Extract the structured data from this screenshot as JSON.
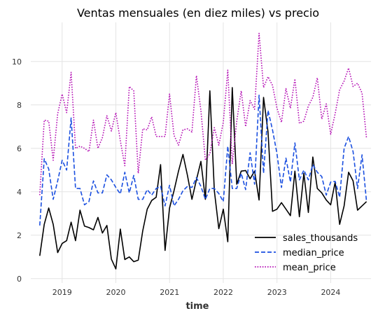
{
  "chart_data": {
    "type": "line",
    "title": "Ventas mensuales (en diez miles) vs precio",
    "xlabel": "time",
    "ylabel": "",
    "x_start": "2018-08",
    "x_ticks": [
      "2019",
      "2020",
      "2021",
      "2022",
      "2023",
      "2024"
    ],
    "y_ticks": [
      0,
      2,
      4,
      6,
      8,
      10
    ],
    "xlim": [
      "2018-06",
      "2024-10"
    ],
    "ylim": [
      -0.2,
      11.8
    ],
    "grid": true,
    "legend_position": "bottom-right",
    "series": [
      {
        "name": "sales_thousands",
        "color": "#000000",
        "dash": "solid",
        "values": [
          1.05,
          2.5,
          3.25,
          2.5,
          1.2,
          1.62,
          1.75,
          2.6,
          1.75,
          3.15,
          2.42,
          2.35,
          2.25,
          2.82,
          2.1,
          2.45,
          0.9,
          0.45,
          2.28,
          0.88,
          1.0,
          0.78,
          0.85,
          2.2,
          3.2,
          3.6,
          3.75,
          5.25,
          1.3,
          3.25,
          4.05,
          4.95,
          5.72,
          4.75,
          3.65,
          4.55,
          5.4,
          3.65,
          8.65,
          4.05,
          2.3,
          3.2,
          1.7,
          8.8,
          4.35,
          4.95,
          4.98,
          4.6,
          4.95,
          3.62,
          8.35,
          6.75,
          3.1,
          3.2,
          3.5,
          3.2,
          2.9,
          4.95,
          2.85,
          4.85,
          3.05,
          5.6,
          4.15,
          3.95,
          3.62,
          3.4,
          4.45,
          2.5,
          3.35,
          4.9,
          4.5,
          3.15,
          3.35,
          3.55
        ]
      },
      {
        "name": "median_price",
        "color": "#1a4fe0",
        "dash": "dashed",
        "values": [
          2.45,
          5.52,
          5.05,
          3.65,
          4.5,
          5.45,
          5.0,
          7.4,
          4.15,
          4.15,
          3.4,
          3.55,
          4.5,
          3.95,
          3.95,
          4.78,
          4.55,
          4.2,
          3.9,
          4.9,
          3.95,
          4.75,
          3.65,
          3.65,
          4.1,
          3.85,
          4.15,
          4.25,
          3.35,
          4.3,
          3.35,
          3.65,
          4.05,
          4.25,
          4.2,
          4.65,
          4.25,
          3.65,
          4.15,
          4.15,
          3.92,
          3.55,
          6.1,
          4.15,
          4.15,
          4.85,
          4.1,
          5.8,
          4.35,
          8.45,
          4.85,
          7.75,
          6.85,
          5.75,
          4.2,
          5.55,
          4.45,
          6.25,
          4.55,
          5.0,
          4.55,
          5.25,
          4.9,
          4.7,
          3.85,
          4.45,
          4.48,
          3.75,
          6.0,
          6.55,
          5.85,
          4.15,
          5.7,
          3.55
        ]
      },
      {
        "name": "mean_price",
        "color": "#b40fb4",
        "dash": "dotted",
        "values": [
          3.85,
          7.3,
          7.25,
          5.45,
          7.6,
          8.5,
          7.65,
          9.5,
          6.0,
          6.1,
          6.0,
          5.85,
          7.3,
          6.0,
          6.5,
          7.5,
          6.8,
          7.65,
          6.35,
          5.2,
          8.85,
          8.65,
          4.85,
          6.9,
          6.85,
          7.45,
          6.55,
          6.55,
          6.55,
          8.5,
          6.6,
          6.15,
          6.85,
          6.9,
          6.75,
          9.35,
          7.75,
          5.45,
          5.75,
          6.95,
          6.15,
          7.2,
          9.6,
          5.3,
          7.25,
          8.65,
          7.0,
          8.2,
          7.8,
          11.3,
          8.8,
          9.3,
          8.9,
          7.85,
          7.2,
          8.75,
          7.85,
          9.2,
          7.15,
          7.25,
          7.95,
          8.35,
          9.25,
          7.35,
          8.05,
          6.65,
          7.6,
          8.7,
          9.1,
          9.7,
          8.85,
          9.0,
          8.55,
          6.45
        ]
      }
    ]
  }
}
